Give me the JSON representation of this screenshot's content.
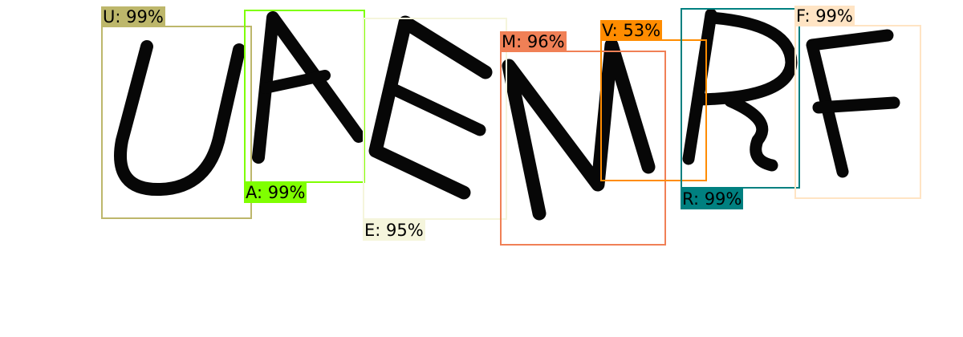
{
  "detections": [
    {
      "text": "U: 99%",
      "color": "#BDB76B"
    },
    {
      "text": "A: 99%",
      "color": "#7FFF00"
    },
    {
      "text": "E: 95%",
      "color": "#F5F5DC"
    },
    {
      "text": "M: 96%",
      "color": "#F08056"
    },
    {
      "text": "V: 53%",
      "color": "#FF8C00"
    },
    {
      "text": "R: 99%",
      "color": "#008080"
    },
    {
      "text": "F: 99%",
      "color": "#FFE4C4"
    }
  ]
}
